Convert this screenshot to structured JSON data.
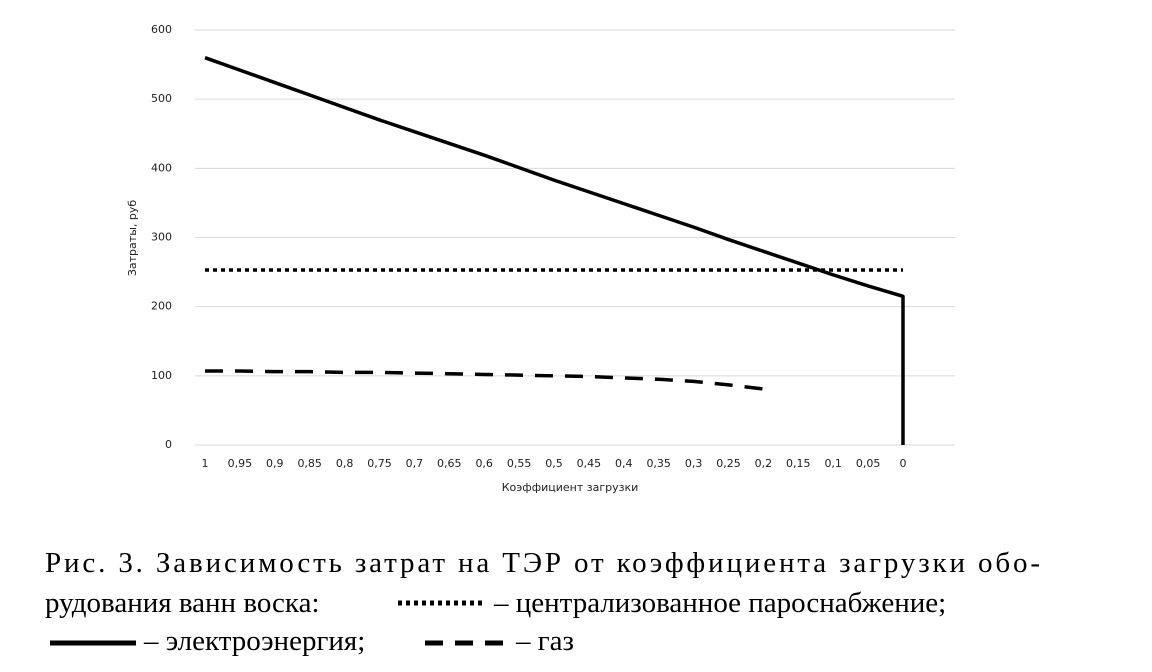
{
  "chart_data": {
    "type": "line",
    "y_label": "Затраты, руб",
    "x_label": "Коэффициент загрузки",
    "xlim": [
      1,
      0
    ],
    "xticks": [
      1,
      {
        "value": 0.95,
        "label": "0,95"
      },
      {
        "value": 0.9,
        "label": "0,9"
      },
      {
        "value": 0.85,
        "label": "0,85"
      },
      {
        "value": 0.8,
        "label": "0,8"
      },
      {
        "value": 0.75,
        "label": "0,75"
      },
      {
        "value": 0.7,
        "label": "0,7"
      },
      {
        "value": 0.65,
        "label": "0,65"
      },
      {
        "value": 0.6,
        "label": "0,6"
      },
      {
        "value": 0.55,
        "label": "0,55"
      },
      {
        "value": 0.5,
        "label": "0,5"
      },
      {
        "value": 0.45,
        "label": "0,45"
      },
      {
        "value": 0.4,
        "label": "0,4"
      },
      {
        "value": 0.35,
        "label": "0,35"
      },
      {
        "value": 0.3,
        "label": "0,3"
      },
      {
        "value": 0.25,
        "label": "0,25"
      },
      {
        "value": 0.2,
        "label": "0,2"
      },
      {
        "value": 0.15,
        "label": "0,15"
      },
      {
        "value": 0.1,
        "label": "0,1"
      },
      {
        "value": 0.05,
        "label": "0,05"
      },
      0
    ],
    "ylim": [
      0,
      600
    ],
    "yticks": [
      0,
      100,
      200,
      300,
      400,
      500,
      600
    ],
    "grid": true,
    "caption": [
      "Рис. 3. Зависимость затрат на ТЭР от коэффициента загрузки обо-",
      "рудования ванн воска:"
    ],
    "series": [
      {
        "name": "– централизованное пароснабжение;",
        "color": "#000000",
        "style": "dotted",
        "x": [
          1,
          0
        ],
        "values": [
          253,
          253
        ]
      },
      {
        "name": "– электроэнергия;",
        "color": "#000000",
        "style": "solid",
        "x": [
          1,
          0.95,
          0.9,
          0.85,
          0.8,
          0.75,
          0.7,
          0.65,
          0.6,
          0.55,
          0.5,
          0.45,
          0.4,
          0.35,
          0.3,
          0.25,
          0.2,
          0.15,
          0.1,
          0.05,
          0,
          0
        ],
        "values": [
          560,
          542,
          524,
          506,
          488,
          470,
          453,
          436,
          419,
          401,
          383,
          366,
          349,
          332,
          315,
          297,
          280,
          263,
          246,
          230,
          215,
          0
        ]
      },
      {
        "name": "– газ",
        "color": "#000000",
        "style": "dashed",
        "x": [
          1,
          0.95,
          0.9,
          0.85,
          0.8,
          0.75,
          0.7,
          0.65,
          0.6,
          0.55,
          0.5,
          0.45,
          0.4,
          0.35,
          0.3,
          0.25,
          0.2
        ],
        "values": [
          107,
          107,
          106,
          106,
          105,
          105,
          104,
          103,
          102,
          101,
          100,
          99,
          97,
          95,
          92,
          87,
          81
        ]
      }
    ]
  }
}
